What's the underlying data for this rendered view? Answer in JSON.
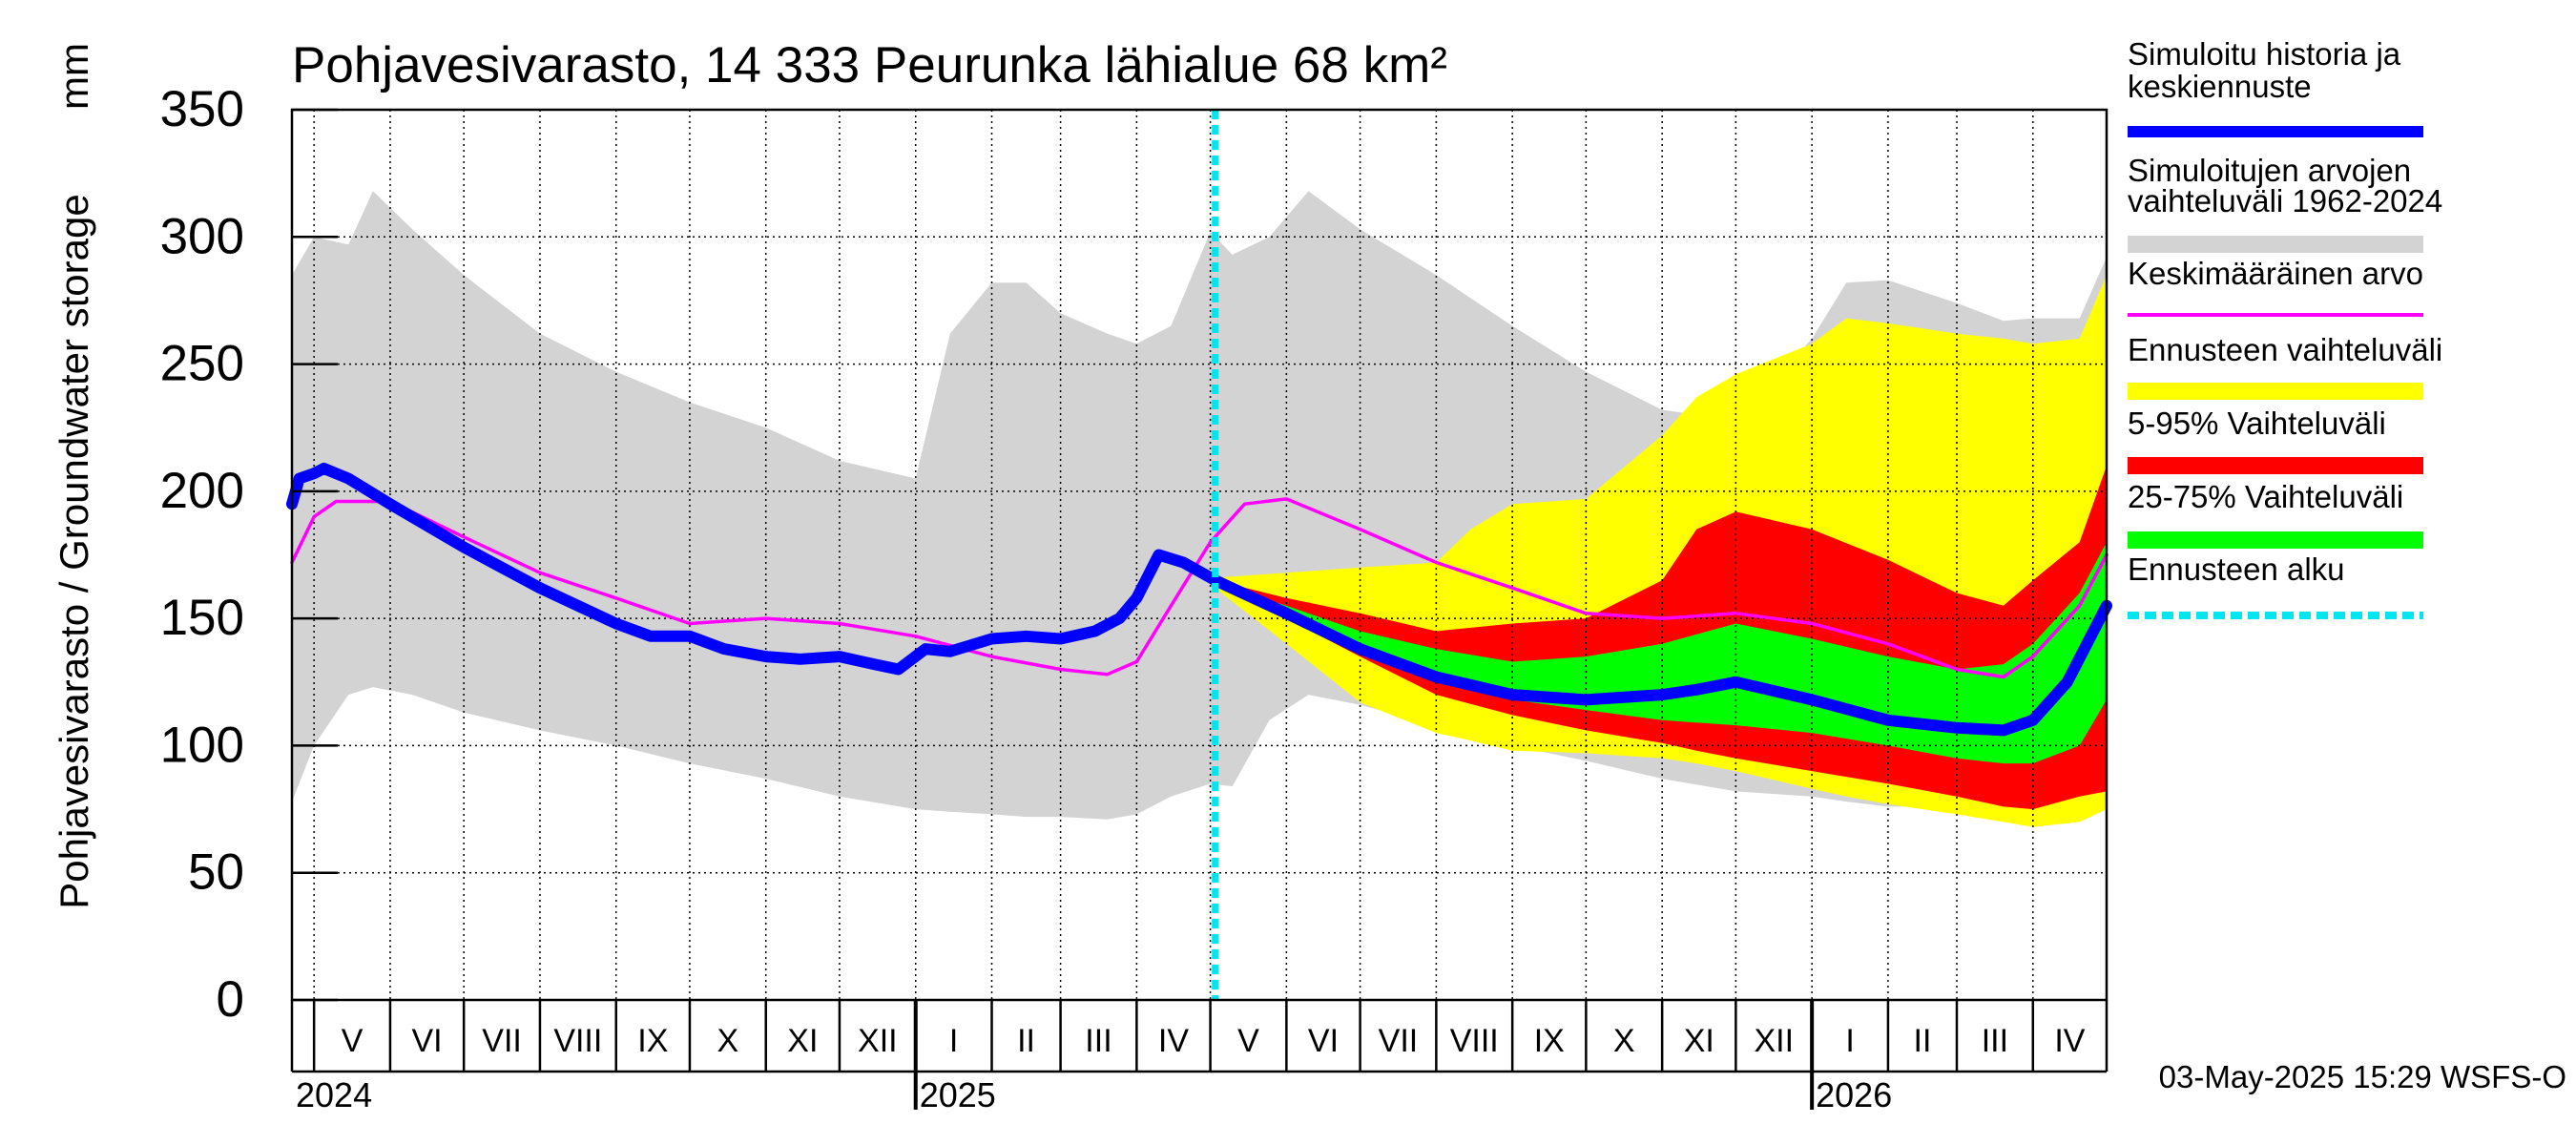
{
  "chart_data": {
    "type": "area",
    "title": "Pohjavesivarasto, 14 333 Peurunka lähialue 68 km²",
    "ylabel": "Pohjavesivarasto / Groundwater storage",
    "yunit": "mm",
    "ylim": [
      0,
      350
    ],
    "yticks": [
      0,
      50,
      100,
      150,
      200,
      250,
      300,
      350
    ],
    "xlim": [
      "2024-04-22",
      "2026-05-01"
    ],
    "grid": true,
    "legend_placement": "right",
    "months": [
      {
        "label": "V",
        "start": "2024-05-01"
      },
      {
        "label": "VI",
        "start": "2024-06-01"
      },
      {
        "label": "VII",
        "start": "2024-07-01"
      },
      {
        "label": "VIII",
        "start": "2024-08-01"
      },
      {
        "label": "IX",
        "start": "2024-09-01"
      },
      {
        "label": "X",
        "start": "2024-10-01"
      },
      {
        "label": "XI",
        "start": "2024-11-01"
      },
      {
        "label": "XII",
        "start": "2024-12-01"
      },
      {
        "label": "I",
        "start": "2025-01-01"
      },
      {
        "label": "II",
        "start": "2025-02-01"
      },
      {
        "label": "III",
        "start": "2025-03-01"
      },
      {
        "label": "IV",
        "start": "2025-04-01"
      },
      {
        "label": "V",
        "start": "2025-05-01"
      },
      {
        "label": "VI",
        "start": "2025-06-01"
      },
      {
        "label": "VII",
        "start": "2025-07-01"
      },
      {
        "label": "VIII",
        "start": "2025-08-01"
      },
      {
        "label": "IX",
        "start": "2025-09-01"
      },
      {
        "label": "X",
        "start": "2025-10-01"
      },
      {
        "label": "XI",
        "start": "2025-11-01"
      },
      {
        "label": "XII",
        "start": "2025-12-01"
      },
      {
        "label": "I",
        "start": "2026-01-01"
      },
      {
        "label": "II",
        "start": "2026-02-01"
      },
      {
        "label": "III",
        "start": "2026-03-01"
      },
      {
        "label": "IV",
        "start": "2026-04-01"
      }
    ],
    "years": [
      {
        "label": "2024",
        "date": "2024-04-22"
      },
      {
        "label": "2025",
        "date": "2025-01-01"
      },
      {
        "label": "2026",
        "date": "2026-01-01"
      }
    ],
    "forecast_start": "2025-05-03",
    "series": [
      {
        "name": "Simuloitujen arvojen vaihteluväli 1962-2024",
        "color": "#d3d3d3",
        "x": [
          "2024-04-22",
          "2024-05-01",
          "2024-05-15",
          "2024-05-25",
          "2024-06-10",
          "2024-07-01",
          "2024-08-01",
          "2024-09-01",
          "2024-10-01",
          "2024-11-01",
          "2024-12-01",
          "2025-01-01",
          "2025-01-15",
          "2025-02-01",
          "2025-02-15",
          "2025-03-01",
          "2025-03-20",
          "2025-04-01",
          "2025-04-15",
          "2025-05-01",
          "2025-05-10",
          "2025-05-25",
          "2025-06-10",
          "2025-07-01",
          "2025-08-01",
          "2025-09-01",
          "2025-10-01",
          "2025-11-01",
          "2025-12-01",
          "2026-01-01",
          "2026-01-15",
          "2026-02-01",
          "2026-03-01",
          "2026-03-20",
          "2026-04-01",
          "2026-04-20",
          "2026-05-01"
        ],
        "upper": [
          285,
          300,
          297,
          318,
          303,
          285,
          262,
          247,
          235,
          225,
          212,
          205,
          262,
          282,
          282,
          270,
          262,
          258,
          265,
          302,
          293,
          300,
          318,
          303,
          285,
          265,
          247,
          232,
          228,
          260,
          282,
          283,
          274,
          267,
          268,
          268,
          292
        ],
        "lower": [
          78,
          100,
          120,
          123,
          120,
          113,
          106,
          100,
          93,
          87,
          80,
          75,
          74,
          73,
          72,
          72,
          71,
          73,
          80,
          85,
          84,
          110,
          120,
          116,
          108,
          100,
          94,
          87,
          82,
          80,
          78,
          76,
          76,
          74,
          73,
          72,
          76
        ]
      },
      {
        "name": "Ennusteen vaihteluväli",
        "color": "#ffff00",
        "x": [
          "2025-05-03",
          "2025-06-01",
          "2025-07-01",
          "2025-08-01",
          "2025-08-15",
          "2025-09-01",
          "2025-10-01",
          "2025-11-01",
          "2025-11-15",
          "2025-12-01",
          "2026-01-01",
          "2026-01-15",
          "2026-02-01",
          "2026-03-01",
          "2026-03-20",
          "2026-04-01",
          "2026-04-20",
          "2026-05-01"
        ],
        "upper": [
          166,
          168,
          170,
          172,
          185,
          195,
          197,
          222,
          237,
          246,
          258,
          268,
          266,
          262,
          260,
          258,
          260,
          285
        ],
        "lower": [
          162,
          140,
          117,
          105,
          102,
          98,
          97,
          95,
          93,
          90,
          83,
          80,
          77,
          73,
          70,
          68,
          70,
          75
        ]
      },
      {
        "name": "5-95% Vaihteluväli",
        "color": "#ff0000",
        "x": [
          "2025-05-03",
          "2025-06-01",
          "2025-07-01",
          "2025-08-01",
          "2025-09-01",
          "2025-10-01",
          "2025-11-01",
          "2025-11-15",
          "2025-12-01",
          "2026-01-01",
          "2026-02-01",
          "2026-03-01",
          "2026-03-20",
          "2026-04-01",
          "2026-04-20",
          "2026-05-01"
        ],
        "upper": [
          165,
          158,
          152,
          145,
          148,
          150,
          165,
          185,
          192,
          185,
          173,
          160,
          155,
          165,
          180,
          210
        ],
        "lower": [
          163,
          150,
          135,
          120,
          112,
          106,
          101,
          98,
          95,
          90,
          85,
          80,
          76,
          75,
          80,
          82
        ]
      },
      {
        "name": "25-75% Vaihteluväli",
        "color": "#00ff00",
        "x": [
          "2025-05-03",
          "2025-06-01",
          "2025-07-01",
          "2025-08-01",
          "2025-09-01",
          "2025-10-01",
          "2025-11-01",
          "2025-12-01",
          "2026-01-01",
          "2026-02-01",
          "2026-03-01",
          "2026-03-20",
          "2026-04-01",
          "2026-04-20",
          "2026-05-01"
        ],
        "upper": [
          164,
          155,
          145,
          138,
          133,
          135,
          140,
          148,
          142,
          135,
          130,
          132,
          140,
          160,
          180
        ],
        "lower": [
          163,
          152,
          138,
          125,
          118,
          114,
          110,
          108,
          105,
          100,
          95,
          93,
          93,
          100,
          118
        ]
      },
      {
        "name": "Keskimääräinen arvo",
        "color": "#ff00ff",
        "x": [
          "2024-04-22",
          "2024-05-01",
          "2024-05-10",
          "2024-06-01",
          "2024-07-01",
          "2024-08-01",
          "2024-09-01",
          "2024-10-01",
          "2024-11-01",
          "2024-12-01",
          "2025-01-01",
          "2025-02-01",
          "2025-03-01",
          "2025-03-20",
          "2025-04-01",
          "2025-04-15",
          "2025-05-01",
          "2025-05-15",
          "2025-06-01",
          "2025-07-01",
          "2025-08-01",
          "2025-09-01",
          "2025-10-01",
          "2025-11-01",
          "2025-12-01",
          "2026-01-01",
          "2026-02-01",
          "2026-03-01",
          "2026-03-20",
          "2026-04-01",
          "2026-04-20",
          "2026-05-01"
        ],
        "y": [
          172,
          190,
          196,
          196,
          182,
          168,
          158,
          148,
          150,
          148,
          143,
          135,
          130,
          128,
          133,
          155,
          180,
          195,
          197,
          185,
          172,
          162,
          152,
          150,
          152,
          148,
          140,
          130,
          127,
          135,
          155,
          175
        ]
      },
      {
        "name": "Simuloitu historia ja keskiennuste",
        "color": "#0000ff",
        "x": [
          "2024-04-22",
          "2024-04-25",
          "2024-05-01",
          "2024-05-05",
          "2024-05-15",
          "2024-06-01",
          "2024-07-01",
          "2024-08-01",
          "2024-09-01",
          "2024-09-15",
          "2024-10-01",
          "2024-10-15",
          "2024-11-01",
          "2024-11-15",
          "2024-12-01",
          "2024-12-15",
          "2024-12-25",
          "2025-01-05",
          "2025-01-15",
          "2025-02-01",
          "2025-02-15",
          "2025-03-01",
          "2025-03-15",
          "2025-03-25",
          "2025-04-01",
          "2025-04-10",
          "2025-04-20",
          "2025-05-03",
          "2025-06-01",
          "2025-07-01",
          "2025-08-01",
          "2025-09-01",
          "2025-10-01",
          "2025-11-01",
          "2025-11-15",
          "2025-12-01",
          "2026-01-01",
          "2026-02-01",
          "2026-03-01",
          "2026-03-20",
          "2026-04-01",
          "2026-04-15",
          "2026-05-01"
        ],
        "y": [
          195,
          205,
          207,
          209,
          205,
          195,
          178,
          162,
          148,
          143,
          143,
          138,
          135,
          134,
          135,
          132,
          130,
          138,
          137,
          142,
          143,
          142,
          145,
          150,
          158,
          175,
          172,
          165,
          152,
          138,
          127,
          120,
          118,
          120,
          122,
          125,
          118,
          110,
          107,
          106,
          110,
          125,
          155
        ]
      }
    ],
    "legend": [
      {
        "label": "Simuloitu historia ja keskiennuste",
        "color": "#0000ff",
        "style": "line"
      },
      {
        "label": "Simuloitujen arvojen vaihteluväli 1962-2024",
        "color": "#d3d3d3",
        "style": "band"
      },
      {
        "label": "Keskimääräinen arvo",
        "color": "#ff00ff",
        "style": "thin"
      },
      {
        "label": "Ennusteen vaihteluväli",
        "color": "#ffff00",
        "style": "band"
      },
      {
        "label": "5-95% Vaihteluväli",
        "color": "#ff0000",
        "style": "band"
      },
      {
        "label": "25-75% Vaihteluväli",
        "color": "#00ff00",
        "style": "band"
      },
      {
        "label": "Ennusteen alku",
        "color": "#00e5ee",
        "style": "dashed"
      }
    ],
    "timestamp": "03-May-2025 15:29 WSFS-O"
  }
}
